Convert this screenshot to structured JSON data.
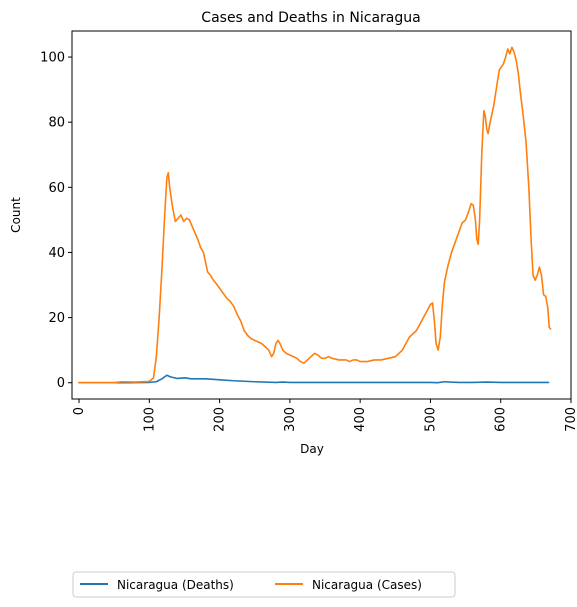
{
  "chart_data": {
    "type": "line",
    "title": "Cases and Deaths in Nicaragua",
    "xlabel": "Day",
    "ylabel": "Count",
    "xlim": [
      -10,
      700
    ],
    "ylim": [
      -5,
      108
    ],
    "x_ticks": [
      0,
      100,
      200,
      300,
      400,
      500,
      600,
      700
    ],
    "y_ticks": [
      0,
      20,
      40,
      60,
      80,
      100
    ],
    "grid": false,
    "legend_position": "bottom-outside",
    "series": [
      {
        "name": "Nicaragua (Deaths)",
        "color": "#1f77b4",
        "points": [
          [
            0,
            0
          ],
          [
            60,
            0
          ],
          [
            100,
            0.1
          ],
          [
            110,
            0.3
          ],
          [
            118,
            1.2
          ],
          [
            125,
            2.3
          ],
          [
            130,
            1.8
          ],
          [
            140,
            1.3
          ],
          [
            150,
            1.5
          ],
          [
            160,
            1.2
          ],
          [
            180,
            1.2
          ],
          [
            200,
            0.9
          ],
          [
            220,
            0.6
          ],
          [
            250,
            0.3
          ],
          [
            280,
            0.1
          ],
          [
            290,
            0.2
          ],
          [
            300,
            0.1
          ],
          [
            400,
            0.1
          ],
          [
            500,
            0.1
          ],
          [
            510,
            0
          ],
          [
            520,
            0.3
          ],
          [
            540,
            0.1
          ],
          [
            560,
            0.1
          ],
          [
            580,
            0.2
          ],
          [
            600,
            0.1
          ],
          [
            620,
            0.1
          ],
          [
            668,
            0.1
          ]
        ]
      },
      {
        "name": "Nicaragua (Cases)",
        "color": "#ff7f0e",
        "points": [
          [
            0,
            0
          ],
          [
            50,
            0
          ],
          [
            60,
            0.3
          ],
          [
            80,
            0.2
          ],
          [
            100,
            0.4
          ],
          [
            106,
            1.5
          ],
          [
            110,
            8
          ],
          [
            114,
            20
          ],
          [
            118,
            35
          ],
          [
            122,
            52
          ],
          [
            125,
            63
          ],
          [
            127,
            64.5
          ],
          [
            129,
            60
          ],
          [
            133,
            54
          ],
          [
            137,
            49.5
          ],
          [
            141,
            50.5
          ],
          [
            145,
            51.5
          ],
          [
            149,
            49.5
          ],
          [
            153,
            50.5
          ],
          [
            157,
            50
          ],
          [
            161,
            48
          ],
          [
            165,
            46
          ],
          [
            169,
            44
          ],
          [
            173,
            41.5
          ],
          [
            177,
            40
          ],
          [
            180,
            37
          ],
          [
            183,
            34
          ],
          [
            187,
            33
          ],
          [
            191,
            31.5
          ],
          [
            195,
            30.5
          ],
          [
            200,
            29
          ],
          [
            205,
            27.5
          ],
          [
            210,
            26
          ],
          [
            215,
            25
          ],
          [
            220,
            23.5
          ],
          [
            225,
            21
          ],
          [
            230,
            19
          ],
          [
            235,
            16
          ],
          [
            240,
            14.5
          ],
          [
            245,
            13.5
          ],
          [
            250,
            13
          ],
          [
            255,
            12.5
          ],
          [
            260,
            12
          ],
          [
            265,
            11
          ],
          [
            270,
            10
          ],
          [
            274,
            8
          ],
          [
            277,
            9
          ],
          [
            280,
            12
          ],
          [
            283,
            13
          ],
          [
            286,
            12
          ],
          [
            290,
            10
          ],
          [
            295,
            9
          ],
          [
            300,
            8.5
          ],
          [
            305,
            8
          ],
          [
            310,
            7.5
          ],
          [
            315,
            6.5
          ],
          [
            320,
            6
          ],
          [
            325,
            7
          ],
          [
            330,
            8
          ],
          [
            335,
            9
          ],
          [
            340,
            8.5
          ],
          [
            345,
            7.5
          ],
          [
            350,
            7.5
          ],
          [
            355,
            8
          ],
          [
            360,
            7.5
          ],
          [
            370,
            7
          ],
          [
            380,
            7
          ],
          [
            385,
            6.5
          ],
          [
            390,
            7
          ],
          [
            395,
            7
          ],
          [
            400,
            6.5
          ],
          [
            410,
            6.5
          ],
          [
            420,
            7
          ],
          [
            430,
            7
          ],
          [
            440,
            7.5
          ],
          [
            450,
            8
          ],
          [
            455,
            9
          ],
          [
            460,
            10
          ],
          [
            465,
            12
          ],
          [
            470,
            14
          ],
          [
            475,
            15
          ],
          [
            480,
            16
          ],
          [
            485,
            18
          ],
          [
            490,
            20
          ],
          [
            495,
            22
          ],
          [
            500,
            24
          ],
          [
            503,
            24.5
          ],
          [
            506,
            18
          ],
          [
            508,
            12
          ],
          [
            511,
            10
          ],
          [
            514,
            14
          ],
          [
            517,
            24
          ],
          [
            520,
            31
          ],
          [
            525,
            36
          ],
          [
            530,
            40
          ],
          [
            535,
            43
          ],
          [
            540,
            46
          ],
          [
            545,
            49
          ],
          [
            550,
            50
          ],
          [
            555,
            53
          ],
          [
            558,
            55
          ],
          [
            561,
            54.5
          ],
          [
            564,
            50
          ],
          [
            566,
            44
          ],
          [
            568,
            42.5
          ],
          [
            570,
            50
          ],
          [
            573,
            70
          ],
          [
            576,
            83.5
          ],
          [
            578,
            82
          ],
          [
            580,
            78
          ],
          [
            582,
            76.5
          ],
          [
            585,
            80
          ],
          [
            590,
            85
          ],
          [
            595,
            92
          ],
          [
            598,
            96
          ],
          [
            601,
            97
          ],
          [
            604,
            98
          ],
          [
            607,
            100
          ],
          [
            610,
            102.5
          ],
          [
            613,
            101
          ],
          [
            616,
            103
          ],
          [
            619,
            101.5
          ],
          [
            622,
            99
          ],
          [
            625,
            95
          ],
          [
            628,
            89
          ],
          [
            632,
            82
          ],
          [
            636,
            74
          ],
          [
            640,
            60
          ],
          [
            643,
            45
          ],
          [
            646,
            33
          ],
          [
            649,
            31.5
          ],
          [
            652,
            33
          ],
          [
            655,
            35.5
          ],
          [
            658,
            33
          ],
          [
            661,
            27
          ],
          [
            664,
            26.5
          ],
          [
            667,
            23
          ],
          [
            669,
            17
          ],
          [
            671,
            16.5
          ]
        ]
      }
    ]
  }
}
